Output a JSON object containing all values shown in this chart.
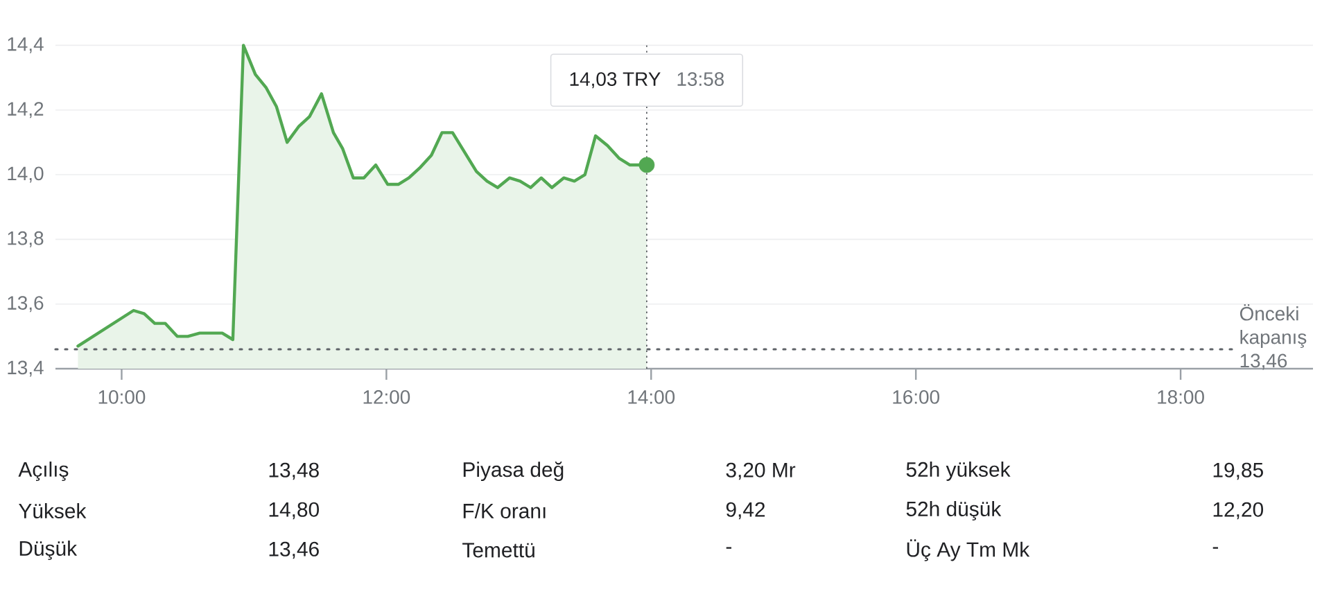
{
  "chart_data": {
    "type": "area",
    "x": [
      9.67,
      10.09,
      10.17,
      10.25,
      10.33,
      10.42,
      10.5,
      10.59,
      10.67,
      10.76,
      10.84,
      10.92,
      11.01,
      11.09,
      11.17,
      11.25,
      11.34,
      11.42,
      11.51,
      11.6,
      11.67,
      11.75,
      11.83,
      11.92,
      12.01,
      12.09,
      12.17,
      12.25,
      12.34,
      12.42,
      12.5,
      12.59,
      12.68,
      12.76,
      12.84,
      12.93,
      13.01,
      13.09,
      13.17,
      13.25,
      13.34,
      13.42,
      13.5,
      13.58,
      13.67,
      13.76,
      13.84,
      13.9667
    ],
    "series": [
      {
        "color": "#52a852",
        "values": [
          13.47,
          13.58,
          13.57,
          13.54,
          13.54,
          13.5,
          13.5,
          13.51,
          13.51,
          13.51,
          13.49,
          14.4,
          14.31,
          14.27,
          14.21,
          14.1,
          14.15,
          14.18,
          14.25,
          14.13,
          14.08,
          13.99,
          13.99,
          14.03,
          13.97,
          13.97,
          13.99,
          14.02,
          14.06,
          14.13,
          14.13,
          14.07,
          14.01,
          13.98,
          13.96,
          13.99,
          13.98,
          13.96,
          13.99,
          13.96,
          13.99,
          13.98,
          14.0,
          14.12,
          14.09,
          14.05,
          14.03,
          14.03
        ]
      },
      {
        "type": "scatter",
        "x": [
          13.9667
        ],
        "values": [
          14.03
        ],
        "color": "#52a852",
        "marker": "circle"
      }
    ],
    "xlim": [
      9.5,
      19
    ],
    "xticks": [
      {
        "value": 10,
        "label": "10:00"
      },
      {
        "value": 12,
        "label": "12:00"
      },
      {
        "value": 14,
        "label": "14:00"
      },
      {
        "value": 16,
        "label": "16:00"
      },
      {
        "value": 18,
        "label": "18:00"
      }
    ],
    "ylim": [
      13.4,
      14.4
    ],
    "yticks": [
      {
        "value": 13.4,
        "label": "13,4"
      },
      {
        "value": 13.6,
        "label": "13,6"
      },
      {
        "value": 13.8,
        "label": "13,8"
      },
      {
        "value": 14.0,
        "label": "14,0"
      },
      {
        "value": 14.2,
        "label": "14,2"
      },
      {
        "value": 14.4,
        "label": "14,4"
      }
    ],
    "grid": "y",
    "ref_lines": [
      {
        "axis": "y",
        "value": 13.46,
        "label": "Önceki kapanış 13,46",
        "color": "#5f6368",
        "line_style": "dotted"
      },
      {
        "axis": "x",
        "value": 13.9667,
        "color": "#5f6368",
        "line_style": "dotted"
      }
    ],
    "annotations": [
      "14,03 TRY",
      "13:58",
      "Açılış",
      "13,48",
      "Piyasa değ",
      "3,20 Mr",
      "52h yüksek",
      "19,85",
      "Yüksek",
      "14,80",
      "F/K oranı",
      "9,42",
      "52h düşük",
      "12,20",
      "Düşük",
      "13,46",
      "Temettü",
      "-",
      "Üç Ay Tm Mk",
      "-"
    ]
  }
}
